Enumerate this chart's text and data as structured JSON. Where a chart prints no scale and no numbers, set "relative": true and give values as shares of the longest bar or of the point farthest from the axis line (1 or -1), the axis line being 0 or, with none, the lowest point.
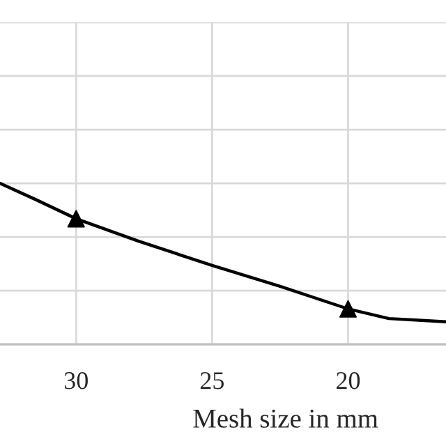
{
  "chart_data": {
    "type": "line",
    "xlabel": "Mesh size in mm",
    "relative": true,
    "xlim": [
      32.8,
      16.4
    ],
    "xticks": [
      30,
      25,
      20
    ],
    "tick_labels": "x",
    "grid": true,
    "series": [
      {
        "color": "#000000",
        "marker": "none",
        "x": [
          32.8,
          31.5,
          30,
          27.7,
          25,
          22.5,
          20,
          18.5,
          17.4,
          16.4
        ],
        "values": [
          1,
          0.9,
          0.78,
          0.64,
          0.49,
          0.36,
          0.22,
          0.16,
          0.15,
          0.14
        ]
      },
      {
        "type": "scatter",
        "color": "#000000",
        "marker": "triangle",
        "x": [
          30,
          20
        ],
        "values": [
          0.78,
          0.22
        ]
      }
    ]
  }
}
